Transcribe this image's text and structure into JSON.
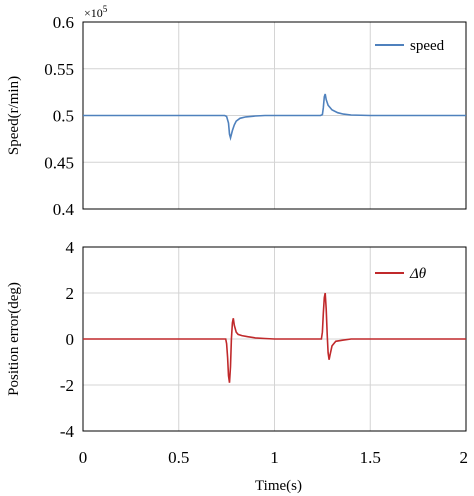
{
  "chart_data": [
    {
      "type": "line",
      "ylabel": "Speed(r/min)",
      "y_multiplier": "×10",
      "y_multiplier_exp": "5",
      "xlim": [
        0,
        2
      ],
      "ylim": [
        0.4,
        0.6
      ],
      "xticks": [
        0,
        0.5,
        1,
        1.5,
        2
      ],
      "yticks": [
        "0.6",
        "0.55",
        "0.5",
        "0.45",
        "0.4"
      ],
      "ytick_values": [
        0.6,
        0.55,
        0.5,
        0.45,
        0.4
      ],
      "grid": true,
      "legend_position": "top-right",
      "series": [
        {
          "name": "speed",
          "color": "#4f81bd",
          "x": [
            0,
            0.74,
            0.75,
            0.76,
            0.765,
            0.77,
            0.78,
            0.79,
            0.8,
            0.82,
            0.85,
            0.9,
            0.95,
            1.0,
            1.24,
            1.25,
            1.255,
            1.26,
            1.265,
            1.27,
            1.28,
            1.3,
            1.33,
            1.36,
            1.4,
            1.5,
            2.0
          ],
          "y": [
            0.5,
            0.5,
            0.499,
            0.492,
            0.48,
            0.476,
            0.484,
            0.49,
            0.494,
            0.497,
            0.4985,
            0.4995,
            0.5,
            0.5,
            0.5,
            0.501,
            0.508,
            0.52,
            0.523,
            0.517,
            0.511,
            0.506,
            0.503,
            0.5015,
            0.5005,
            0.5,
            0.5
          ]
        }
      ]
    },
    {
      "type": "line",
      "xlabel": "Time(s)",
      "ylabel": "Position error(deg)",
      "xlim": [
        0,
        2
      ],
      "ylim": [
        -4,
        4
      ],
      "xticks": [
        0,
        0.5,
        1,
        1.5,
        2
      ],
      "xtick_labels": [
        "0",
        "0.5",
        "1",
        "1.5",
        "2"
      ],
      "yticks": [
        "4",
        "2",
        "0",
        "-2",
        "-4"
      ],
      "ytick_values": [
        4,
        2,
        0,
        -2,
        -4
      ],
      "grid": true,
      "legend_position": "top-right",
      "series": [
        {
          "name": "Δθ",
          "color": "#c0292b",
          "x": [
            0,
            0.745,
            0.75,
            0.755,
            0.76,
            0.765,
            0.77,
            0.775,
            0.78,
            0.785,
            0.79,
            0.8,
            0.81,
            0.83,
            0.86,
            0.9,
            0.95,
            1.0,
            1.245,
            1.25,
            1.255,
            1.26,
            1.265,
            1.27,
            1.275,
            1.28,
            1.285,
            1.29,
            1.3,
            1.32,
            1.36,
            1.4,
            2.0
          ],
          "y": [
            0,
            0,
            -0.2,
            -0.8,
            -1.6,
            -1.9,
            -1.2,
            0.0,
            0.7,
            0.9,
            0.6,
            0.3,
            0.2,
            0.15,
            0.1,
            0.05,
            0.02,
            0,
            0,
            0.3,
            1.1,
            1.8,
            2.0,
            1.3,
            0.2,
            -0.6,
            -0.9,
            -0.7,
            -0.3,
            -0.1,
            -0.05,
            0,
            0
          ]
        }
      ]
    }
  ]
}
